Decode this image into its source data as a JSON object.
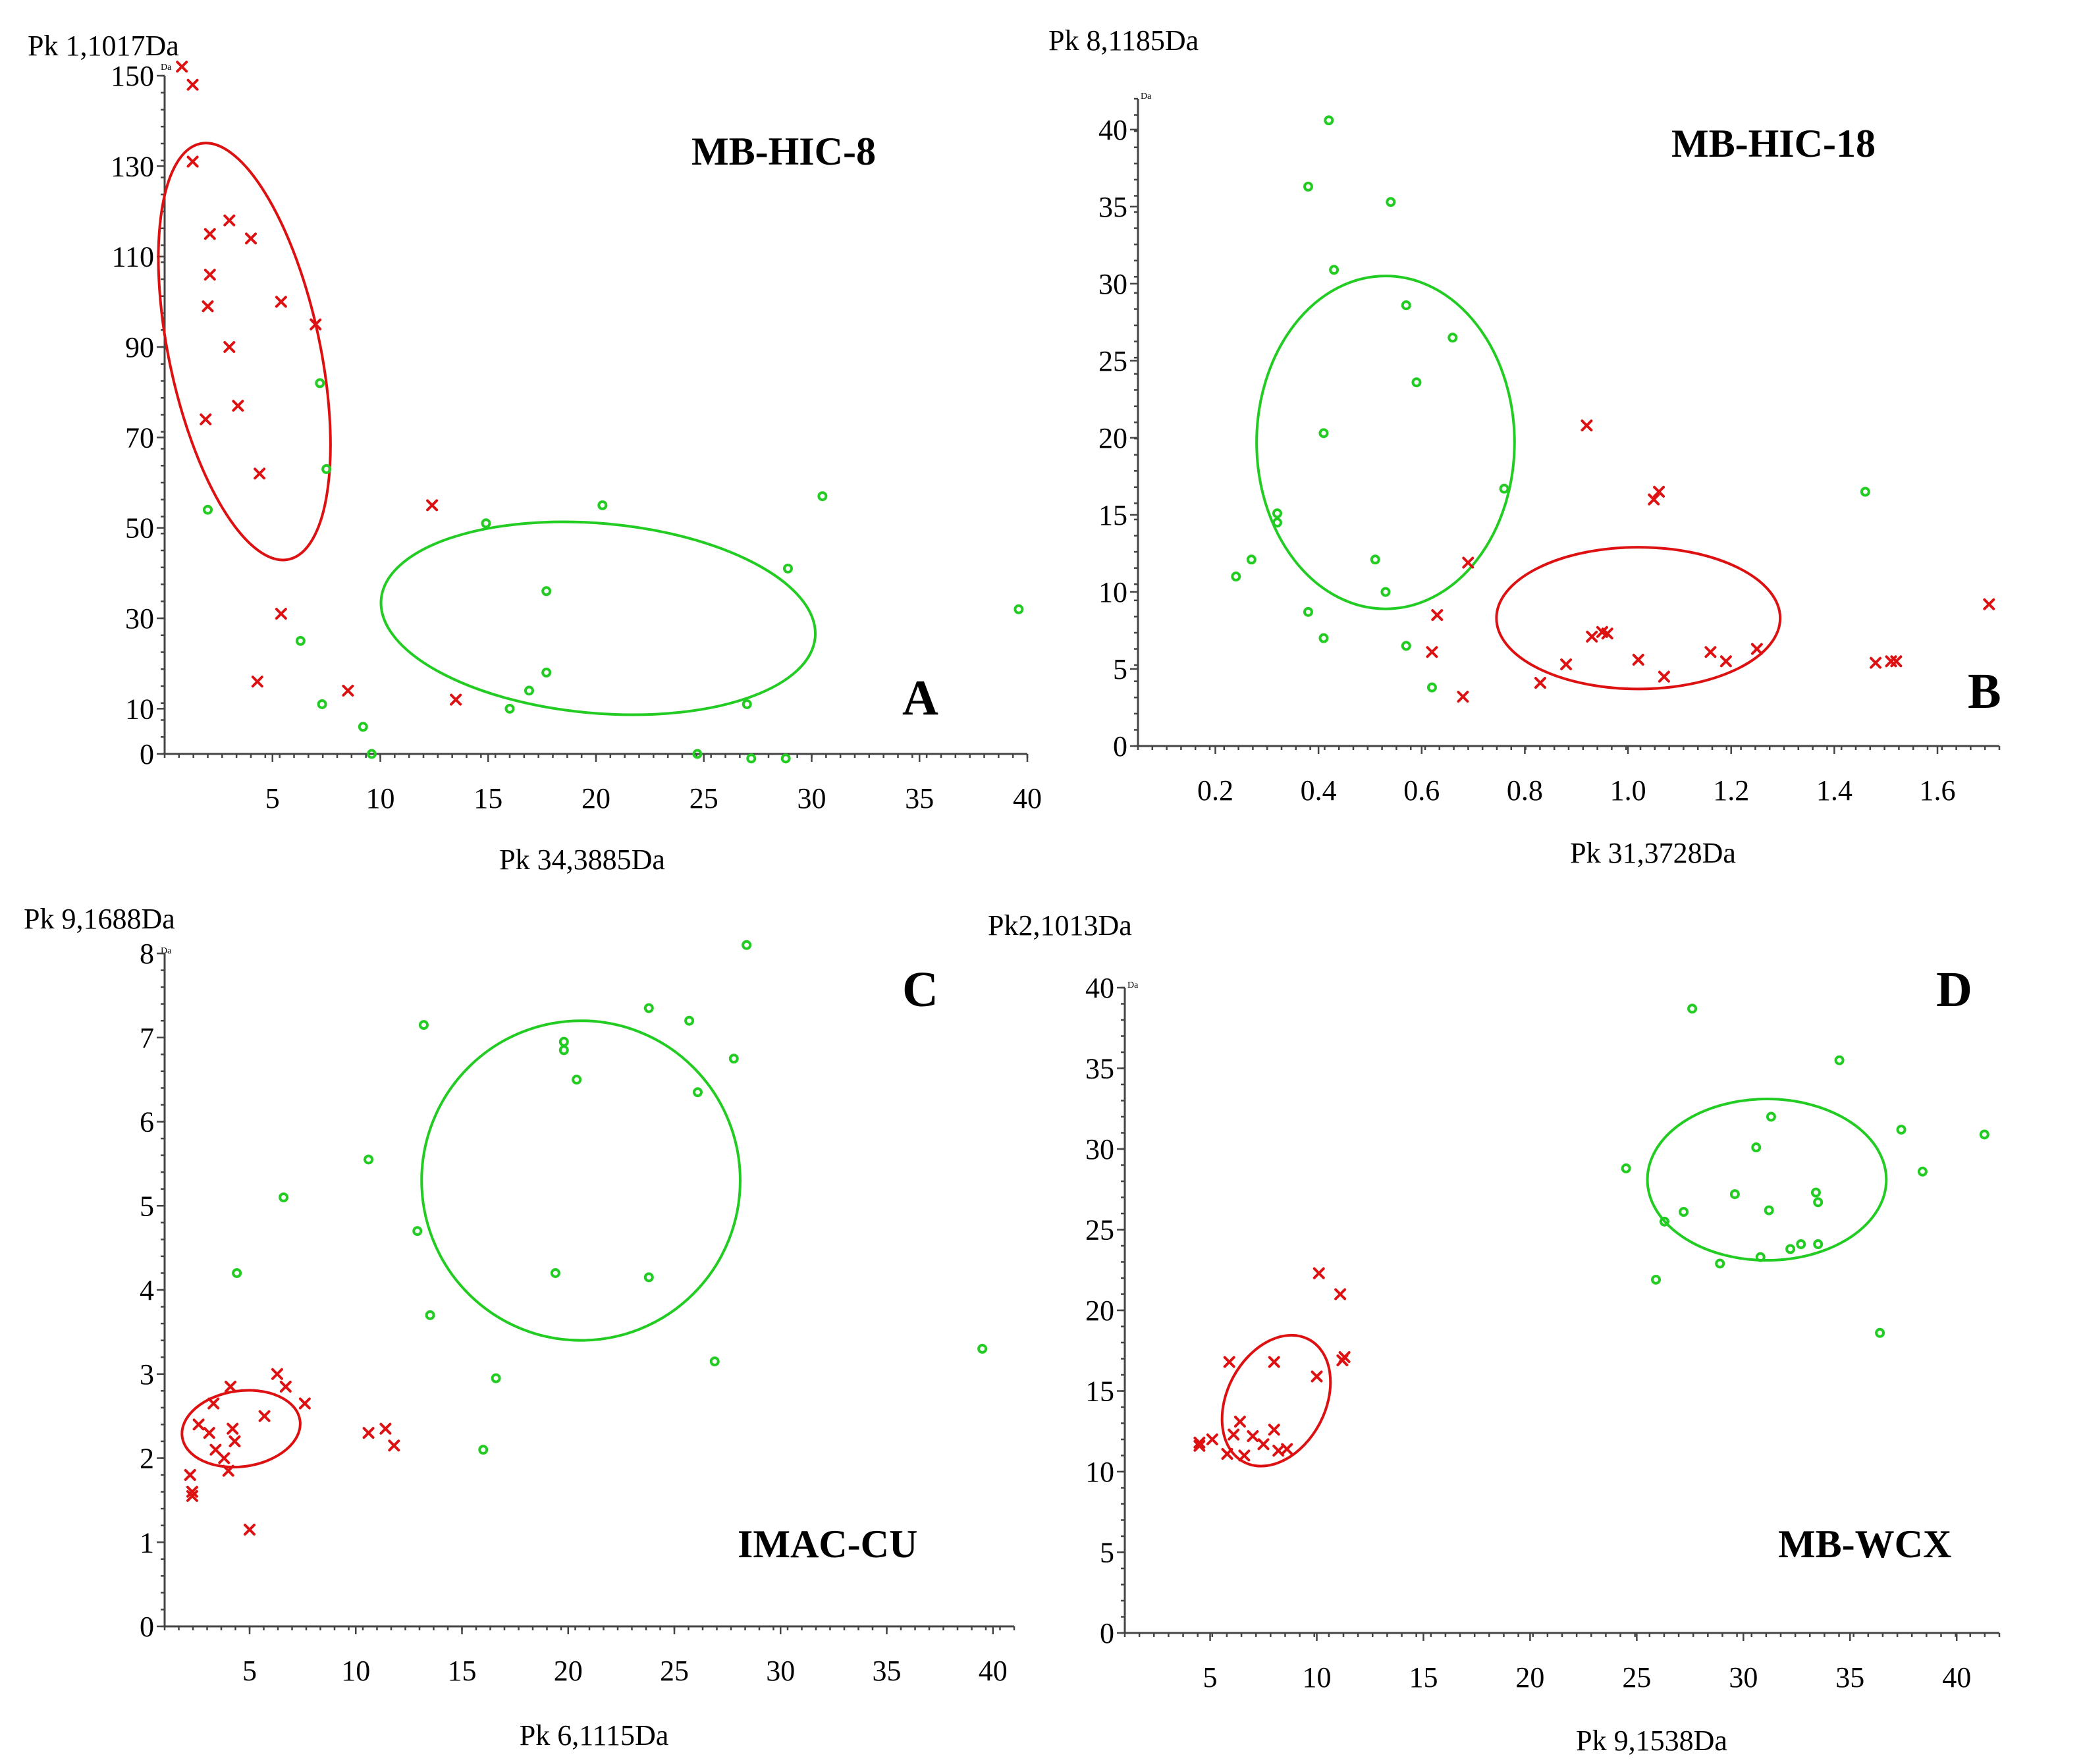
{
  "chart_data": [
    {
      "type": "scatter",
      "panel": "A",
      "title": "MB-HIC-8",
      "xlabel": "Pk 34,3885Da",
      "ylabel": "Pk 1,1017Da",
      "y_unit": "Da",
      "xlim": [
        0,
        40
      ],
      "ylim": [
        0,
        150
      ],
      "xticks": [
        5,
        10,
        15,
        20,
        25,
        30,
        35,
        40
      ],
      "yticks": [
        0,
        10,
        30,
        50,
        70,
        90,
        110,
        130,
        150
      ],
      "colors": {
        "group1": "#dd1111",
        "group2": "#22cc22"
      },
      "series": [
        {
          "marker": "x",
          "color": "#dd1111",
          "points": [
            [
              0.8,
              152
            ],
            [
              1.3,
              148
            ],
            [
              1.3,
              131
            ],
            [
              2.1,
              115
            ],
            [
              2.1,
              106
            ],
            [
              2.0,
              99
            ],
            [
              3.0,
              118
            ],
            [
              4.0,
              114
            ],
            [
              3.0,
              90
            ],
            [
              5.4,
              100
            ],
            [
              7.0,
              95
            ],
            [
              1.9,
              74
            ],
            [
              3.4,
              77
            ],
            [
              4.4,
              62
            ],
            [
              12.4,
              55
            ],
            [
              5.4,
              31
            ],
            [
              4.3,
              16
            ],
            [
              8.5,
              14
            ],
            [
              13.5,
              12
            ]
          ]
        },
        {
          "marker": "o",
          "color": "#22cc22",
          "points": [
            [
              7.2,
              82
            ],
            [
              7.5,
              63
            ],
            [
              2.0,
              54
            ],
            [
              14.9,
              51
            ],
            [
              20.3,
              55
            ],
            [
              30.5,
              57
            ],
            [
              17.7,
              36
            ],
            [
              28.9,
              41
            ],
            [
              39.6,
              32
            ],
            [
              6.3,
              25
            ],
            [
              7.3,
              11
            ],
            [
              16.0,
              10
            ],
            [
              16.9,
              14
            ],
            [
              17.7,
              18
            ],
            [
              27.0,
              11
            ],
            [
              9.2,
              6
            ],
            [
              9.6,
              0
            ],
            [
              24.7,
              0
            ],
            [
              27.2,
              -1
            ],
            [
              28.8,
              -1
            ]
          ]
        }
      ],
      "ellipses": [
        {
          "color": "#dd1111",
          "cx": 3.7,
          "cy": 89,
          "rx": 3.5,
          "ry": 47,
          "angle": -12
        },
        {
          "color": "#22cc22",
          "cx": 20.1,
          "cy": 30,
          "rx": 10.1,
          "ry": 21,
          "angle": 5
        }
      ]
    },
    {
      "type": "scatter",
      "panel": "B",
      "title": "MB-HIC-18",
      "xlabel": "Pk 31,3728Da",
      "ylabel": "Pk 8,1185Da",
      "y_unit": "Da",
      "xlim": [
        0.05,
        1.72
      ],
      "ylim": [
        0,
        42
      ],
      "xticks": [
        0.2,
        0.4,
        0.6,
        0.8,
        1.0,
        1.2,
        1.4,
        1.6
      ],
      "xtick_labels": [
        "0.2",
        "0.4",
        "0.6",
        "0.8",
        "1.0",
        "1.2",
        "1.4",
        "1.6"
      ],
      "yticks": [
        0,
        5,
        10,
        15,
        20,
        25,
        30,
        35,
        40
      ],
      "colors": {
        "group1": "#dd1111",
        "group2": "#22cc22"
      },
      "series": [
        {
          "marker": "x",
          "color": "#dd1111",
          "points": [
            [
              0.92,
              20.8
            ],
            [
              1.06,
              16.5
            ],
            [
              1.05,
              16.0
            ],
            [
              0.69,
              11.9
            ],
            [
              0.63,
              8.5
            ],
            [
              0.62,
              6.1
            ],
            [
              0.68,
              3.2
            ],
            [
              0.83,
              4.1
            ],
            [
              0.88,
              5.3
            ],
            [
              0.93,
              7.1
            ],
            [
              0.95,
              7.4
            ],
            [
              0.96,
              7.3
            ],
            [
              1.02,
              5.6
            ],
            [
              1.07,
              4.5
            ],
            [
              1.16,
              6.1
            ],
            [
              1.19,
              5.5
            ],
            [
              1.25,
              6.3
            ],
            [
              1.48,
              5.4
            ],
            [
              1.51,
              5.5
            ],
            [
              1.52,
              5.5
            ],
            [
              1.7,
              9.2
            ]
          ]
        },
        {
          "marker": "o",
          "color": "#22cc22",
          "points": [
            [
              0.42,
              40.6
            ],
            [
              0.38,
              36.3
            ],
            [
              0.54,
              35.3
            ],
            [
              0.43,
              30.9
            ],
            [
              0.57,
              28.6
            ],
            [
              0.66,
              26.5
            ],
            [
              0.59,
              23.6
            ],
            [
              0.41,
              20.3
            ],
            [
              0.76,
              16.7
            ],
            [
              0.32,
              15.1
            ],
            [
              0.32,
              14.5
            ],
            [
              1.46,
              16.5
            ],
            [
              0.51,
              12.1
            ],
            [
              0.27,
              12.1
            ],
            [
              0.24,
              11.0
            ],
            [
              0.53,
              10.0
            ],
            [
              0.38,
              8.7
            ],
            [
              0.41,
              7.0
            ],
            [
              0.57,
              6.5
            ],
            [
              0.62,
              3.8
            ]
          ]
        }
      ],
      "ellipses": [
        {
          "color": "#22cc22",
          "cx": 0.53,
          "cy": 19.7,
          "rx": 0.25,
          "ry": 10.8,
          "angle": 0
        },
        {
          "color": "#dd1111",
          "cx": 1.02,
          "cy": 8.3,
          "rx": 0.275,
          "ry": 4.6,
          "angle": 0
        }
      ]
    },
    {
      "type": "scatter",
      "panel": "C",
      "title": "IMAC-CU",
      "xlabel": "Pk 6,1115Da",
      "ylabel": "Pk 9,1688Da",
      "y_unit": "Da",
      "xlim": [
        1,
        41
      ],
      "ylim": [
        0,
        8
      ],
      "xticks": [
        5,
        10,
        15,
        20,
        25,
        30,
        35,
        40
      ],
      "yticks": [
        0,
        1,
        2,
        3,
        4,
        5,
        6,
        7,
        8
      ],
      "colors": {
        "group1": "#dd1111",
        "group2": "#22cc22"
      },
      "series": [
        {
          "marker": "x",
          "color": "#dd1111",
          "points": [
            [
              2.2,
              1.8
            ],
            [
              2.3,
              1.6
            ],
            [
              2.3,
              1.55
            ],
            [
              2.6,
              2.4
            ],
            [
              3.1,
              2.3
            ],
            [
              3.3,
              2.65
            ],
            [
              3.4,
              2.1
            ],
            [
              3.8,
              2.0
            ],
            [
              4.0,
              1.85
            ],
            [
              4.1,
              2.85
            ],
            [
              4.2,
              2.35
            ],
            [
              4.3,
              2.2
            ],
            [
              5.0,
              1.15
            ],
            [
              5.7,
              2.5
            ],
            [
              6.3,
              3.0
            ],
            [
              6.7,
              2.85
            ],
            [
              7.6,
              2.65
            ],
            [
              10.6,
              2.3
            ],
            [
              11.4,
              2.35
            ],
            [
              11.8,
              2.15
            ]
          ]
        },
        {
          "marker": "o",
          "color": "#22cc22",
          "points": [
            [
              28.4,
              8.1
            ],
            [
              23.8,
              7.35
            ],
            [
              25.7,
              7.2
            ],
            [
              13.2,
              7.15
            ],
            [
              19.8,
              6.95
            ],
            [
              19.8,
              6.85
            ],
            [
              20.4,
              6.5
            ],
            [
              27.8,
              6.75
            ],
            [
              26.1,
              6.35
            ],
            [
              10.6,
              5.55
            ],
            [
              6.6,
              5.1
            ],
            [
              12.9,
              4.7
            ],
            [
              4.4,
              4.2
            ],
            [
              19.4,
              4.2
            ],
            [
              23.8,
              4.15
            ],
            [
              13.5,
              3.7
            ],
            [
              16.6,
              2.95
            ],
            [
              26.9,
              3.15
            ],
            [
              39.5,
              3.3
            ],
            [
              16.0,
              2.1
            ]
          ]
        }
      ],
      "ellipses": [
        {
          "color": "#dd1111",
          "cx": 4.6,
          "cy": 2.35,
          "rx": 2.8,
          "ry": 0.45,
          "angle": -8
        },
        {
          "color": "#22cc22",
          "cx": 20.6,
          "cy": 5.3,
          "rx": 7.5,
          "ry": 1.9,
          "angle": 0
        }
      ]
    },
    {
      "type": "scatter",
      "panel": "D",
      "title": "MB-WCX",
      "xlabel": "Pk 9,1538Da",
      "ylabel": "Pk2,1013Da",
      "y_unit": "Da",
      "xlim": [
        1,
        42
      ],
      "ylim": [
        0,
        40
      ],
      "xticks": [
        5,
        10,
        15,
        20,
        25,
        30,
        35,
        40
      ],
      "yticks": [
        0,
        5,
        10,
        15,
        20,
        25,
        30,
        35,
        40
      ],
      "colors": {
        "group1": "#dd1111",
        "group2": "#22cc22"
      },
      "series": [
        {
          "marker": "x",
          "color": "#dd1111",
          "points": [
            [
              4.5,
              11.6
            ],
            [
              4.5,
              11.8
            ],
            [
              5.1,
              12.0
            ],
            [
              5.8,
              11.1
            ],
            [
              6.1,
              12.3
            ],
            [
              6.4,
              13.1
            ],
            [
              6.6,
              11.0
            ],
            [
              7.0,
              12.2
            ],
            [
              7.5,
              11.7
            ],
            [
              8.0,
              12.6
            ],
            [
              8.2,
              11.3
            ],
            [
              8.6,
              11.4
            ],
            [
              5.9,
              16.8
            ],
            [
              8.0,
              16.8
            ],
            [
              10.0,
              15.9
            ],
            [
              10.1,
              22.3
            ],
            [
              11.1,
              21.0
            ],
            [
              11.2,
              16.9
            ],
            [
              11.3,
              17.1
            ]
          ]
        },
        {
          "marker": "o",
          "color": "#22cc22",
          "points": [
            [
              27.6,
              38.7
            ],
            [
              34.5,
              35.5
            ],
            [
              31.3,
              32.0
            ],
            [
              37.4,
              31.2
            ],
            [
              41.3,
              30.9
            ],
            [
              30.6,
              30.1
            ],
            [
              24.5,
              28.8
            ],
            [
              38.4,
              28.6
            ],
            [
              29.6,
              27.2
            ],
            [
              31.2,
              26.2
            ],
            [
              33.5,
              26.7
            ],
            [
              33.4,
              27.3
            ],
            [
              27.2,
              26.1
            ],
            [
              26.3,
              25.5
            ],
            [
              32.7,
              24.1
            ],
            [
              33.5,
              24.1
            ],
            [
              32.2,
              23.8
            ],
            [
              30.8,
              23.3
            ],
            [
              28.9,
              22.9
            ],
            [
              25.9,
              21.9
            ],
            [
              36.4,
              18.6
            ]
          ]
        }
      ],
      "ellipses": [
        {
          "color": "#dd1111",
          "cx": 8.1,
          "cy": 14.4,
          "rx": 2.3,
          "ry": 4.3,
          "angle": 28
        },
        {
          "color": "#22cc22",
          "cx": 31.1,
          "cy": 28.1,
          "rx": 5.6,
          "ry": 5.0,
          "angle": 0
        }
      ]
    }
  ]
}
